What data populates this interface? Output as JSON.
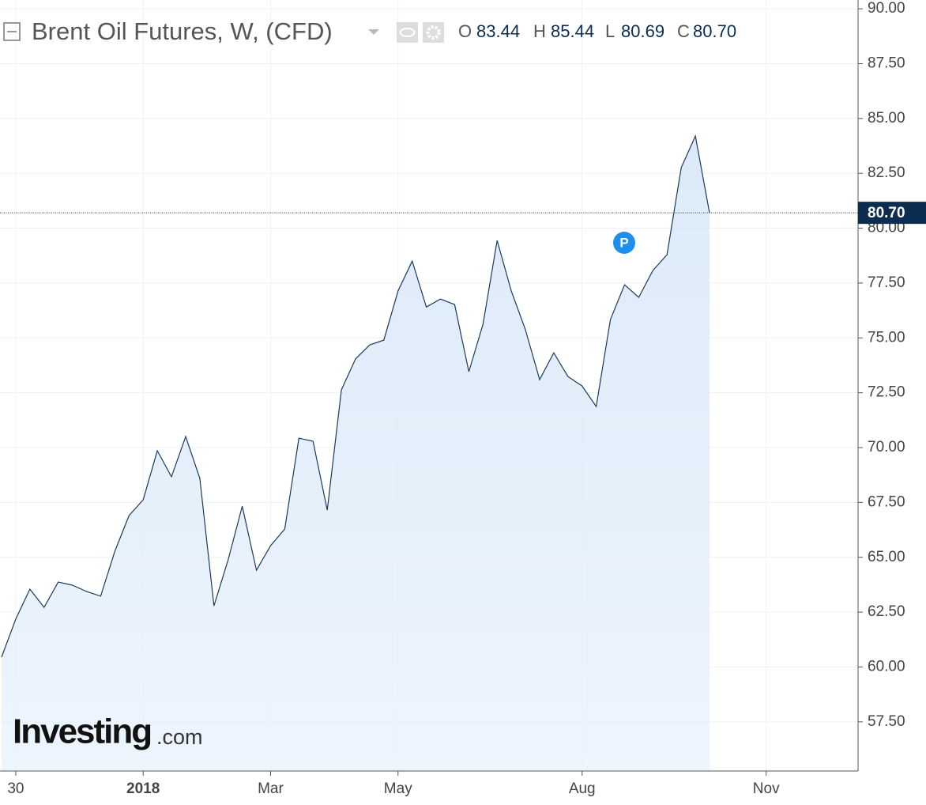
{
  "chart_data": {
    "type": "area",
    "title": "Brent Oil Futures, W, (CFD)",
    "ohlc": [
      {
        "name": "O",
        "value": 83.44,
        "label": "83.44"
      },
      {
        "name": "H",
        "value": 85.44,
        "label": "85.44"
      },
      {
        "name": "L",
        "value": 80.69,
        "label": "80.69"
      },
      {
        "name": "C",
        "value": 80.7,
        "label": "80.70"
      }
    ],
    "categories": [
      null,
      "30",
      null,
      null,
      null,
      null,
      null,
      null,
      null,
      null,
      "2018",
      null,
      null,
      null,
      null,
      null,
      null,
      null,
      null,
      "Mar",
      null,
      null,
      null,
      null,
      null,
      null,
      null,
      null,
      "May",
      null,
      null,
      null,
      null,
      null,
      null,
      null,
      null,
      null,
      null,
      null,
      null,
      "Aug",
      null,
      null,
      null,
      null,
      null,
      null,
      null,
      null,
      null,
      null,
      null,
      null,
      "Nov",
      null,
      null,
      null,
      null,
      null,
      null
    ],
    "values": [
      60.45,
      62.18,
      63.55,
      62.72,
      63.87,
      63.73,
      63.44,
      63.23,
      65.28,
      66.9,
      67.62,
      69.86,
      68.67,
      70.5,
      68.6,
      62.79,
      64.88,
      67.33,
      64.41,
      65.53,
      66.29,
      70.43,
      70.29,
      67.15,
      72.63,
      74.04,
      74.68,
      74.9,
      77.14,
      78.5,
      76.41,
      76.77,
      76.52,
      73.46,
      75.62,
      79.44,
      77.14,
      75.37,
      73.1,
      74.32,
      73.24,
      72.81,
      71.87,
      75.84,
      77.42,
      76.85,
      78.07,
      78.79,
      82.76,
      84.2,
      80.7,
      null,
      null,
      null,
      null,
      null,
      null,
      null,
      null,
      null,
      null
    ],
    "last_label": {
      "value": 80.7,
      "label": "80.70"
    },
    "color": "#1b3a5c",
    "ylim": [
      55.26,
      90.4
    ],
    "yticks": [
      {
        "value": 57.5,
        "label": "57.50"
      },
      {
        "value": 60,
        "label": "60.00"
      },
      {
        "value": 62.5,
        "label": "62.50"
      },
      {
        "value": 65,
        "label": "65.00"
      },
      {
        "value": 67.5,
        "label": "67.50"
      },
      {
        "value": 70,
        "label": "70.00"
      },
      {
        "value": 72.5,
        "label": "72.50"
      },
      {
        "value": 75,
        "label": "75.00"
      },
      {
        "value": 77.5,
        "label": "77.50"
      },
      {
        "value": 80,
        "label": "80.00"
      },
      {
        "value": 82.5,
        "label": "82.50"
      },
      {
        "value": 85,
        "label": "85.00"
      },
      {
        "value": 87.5,
        "label": "87.50"
      },
      {
        "value": 90,
        "label": "90.00"
      }
    ],
    "grid": true,
    "marker_label": "P",
    "watermark": [
      "Investing",
      ".com"
    ]
  }
}
